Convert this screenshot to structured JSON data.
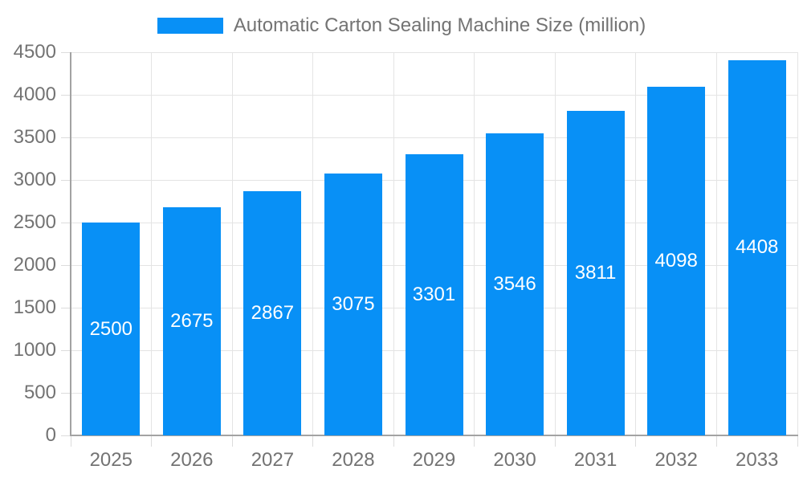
{
  "legend": {
    "series_label": "Automatic Carton Sealing Machine Size (million)"
  },
  "chart_data": {
    "type": "bar",
    "title": "Automatic Carton Sealing Machine Size (million)",
    "categories": [
      "2025",
      "2026",
      "2027",
      "2028",
      "2029",
      "2030",
      "2031",
      "2032",
      "2033"
    ],
    "values": [
      2500,
      2675,
      2867,
      3075,
      3301,
      3546,
      3811,
      4098,
      4408
    ],
    "yticks": [
      0,
      500,
      1000,
      1500,
      2000,
      2500,
      3000,
      3500,
      4000,
      4500
    ],
    "ylim": [
      0,
      4500
    ],
    "xlabel": "",
    "ylabel": "",
    "grid": true,
    "legend_position": "top-center",
    "value_labels": "inside-center",
    "colors": {
      "bar": "#0890f6",
      "value_label": "#ffffff",
      "axis_label": "#737373",
      "gridline": "#e4e4e4",
      "axis_line": "#a3a3a3",
      "background": "#ffffff"
    }
  }
}
